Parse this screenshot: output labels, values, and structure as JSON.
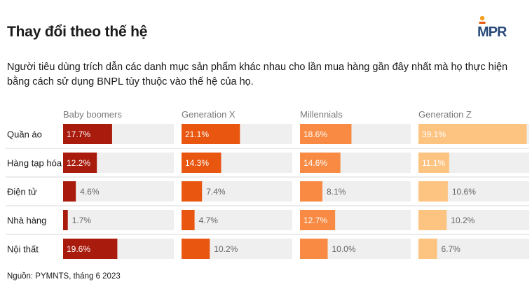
{
  "header": {
    "title": "Thay đổi theo thế hệ",
    "subtitle": "Người tiêu dùng trích dẫn các danh mục sản phẩm khác nhau cho lần mua hàng gần đây nhất mà họ thực hiện bằng cách sử dụng BNPL tùy thuộc vào thế hệ của họ.",
    "logo_text": "MPR"
  },
  "footer": {
    "source": "Nguồn: PYMNTS, tháng 6 2023"
  },
  "chart_data": {
    "type": "bar",
    "orientation": "horizontal",
    "layout": "small-multiples",
    "categories": [
      "Quần áo",
      "Hàng tạp hóa",
      "Điện tử",
      "Nhà hàng",
      "Nội thất"
    ],
    "series": [
      {
        "name": "Baby boomers",
        "color": "#a81b0d",
        "values": [
          17.7,
          12.2,
          4.6,
          1.7,
          19.6
        ],
        "labels": [
          "17.7%",
          "12.2%",
          "4.6%",
          "1.7%",
          "19.6%"
        ]
      },
      {
        "name": "Generation X",
        "color": "#e8560f",
        "values": [
          21.1,
          14.3,
          7.4,
          4.7,
          10.2
        ],
        "labels": [
          "21.1%",
          "14.3%",
          "7.4%",
          "4.7%",
          "10.2%"
        ]
      },
      {
        "name": "Millennials",
        "color": "#f88a43",
        "values": [
          18.6,
          14.6,
          8.1,
          12.7,
          10.0
        ],
        "labels": [
          "18.6%",
          "14.6%",
          "8.1%",
          "12.7%",
          "10.0%"
        ]
      },
      {
        "name": "Generation Z",
        "color": "#fdc381",
        "values": [
          39.1,
          11.1,
          10.6,
          10.2,
          6.7
        ],
        "labels": [
          "39.1%",
          "11.1%",
          "10.6%",
          "10.2%",
          "6.7%"
        ]
      }
    ],
    "track_color": "#efefef",
    "grid": false
  }
}
